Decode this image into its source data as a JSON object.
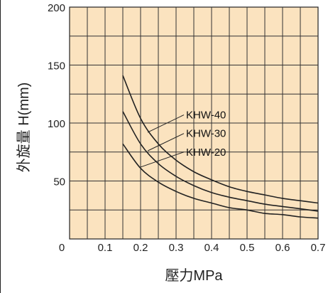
{
  "chart_data": {
    "type": "line",
    "title": "",
    "xlabel": "壓力MPa",
    "ylabel": "外旋量 H(mm)",
    "xlim": [
      0,
      0.7
    ],
    "ylim": [
      0,
      200
    ],
    "x_ticks": [
      "0",
      "0.1",
      "0.2",
      "0.3",
      "0.4",
      "0.5",
      "0.6",
      "0.7"
    ],
    "y_ticks": [
      "200",
      "150",
      "100",
      "50"
    ],
    "grid": true,
    "legend": "inline labels",
    "background_color": "#fbe3bf",
    "series": [
      {
        "name": "KHW-40",
        "x": [
          0.15,
          0.2,
          0.25,
          0.3,
          0.35,
          0.4,
          0.45,
          0.5,
          0.55,
          0.6,
          0.65,
          0.7
        ],
        "y": [
          141,
          104,
          82,
          68,
          58,
          51,
          45,
          41,
          38,
          35,
          33,
          31
        ]
      },
      {
        "name": "KHW-30",
        "x": [
          0.15,
          0.2,
          0.25,
          0.3,
          0.35,
          0.4,
          0.45,
          0.5,
          0.55,
          0.6,
          0.65,
          0.7
        ],
        "y": [
          110,
          82,
          65,
          54,
          46,
          40,
          36,
          33,
          30,
          28,
          26,
          24
        ]
      },
      {
        "name": "KHW-20",
        "x": [
          0.15,
          0.2,
          0.25,
          0.3,
          0.35,
          0.4,
          0.45,
          0.5,
          0.55,
          0.6,
          0.65,
          0.7
        ],
        "y": [
          82,
          61,
          49,
          41,
          35,
          31,
          27,
          25,
          22,
          21,
          19,
          18
        ]
      }
    ],
    "line_color": "#222222"
  }
}
